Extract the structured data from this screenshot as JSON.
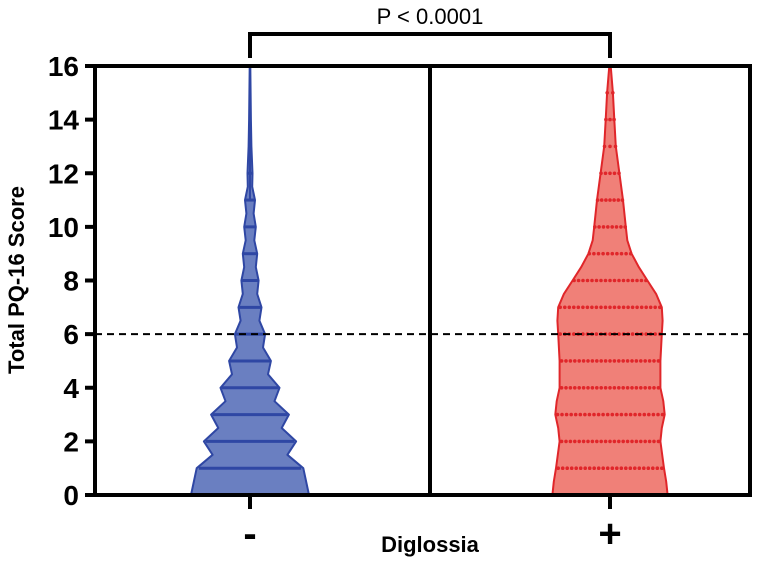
{
  "chart_data": {
    "type": "violin",
    "title": "",
    "ylabel": "Total PQ-16 Score",
    "xlabel": "Diglossia",
    "categories": [
      "-",
      "+"
    ],
    "ylim": [
      0,
      16
    ],
    "yticks": [
      0,
      2,
      4,
      6,
      8,
      10,
      12,
      14,
      16
    ],
    "reference_line": {
      "y": 6,
      "style": "dashed",
      "color": "#000000"
    },
    "annotation": {
      "text": "P < 0.0001",
      "between": [
        "-",
        "+"
      ]
    },
    "grid": false,
    "legend": "none",
    "series": [
      {
        "category": "-",
        "color_fill": "#6a7fc1",
        "color_line": "#2f47a4",
        "density": [
          {
            "y": 0,
            "w": 0.82
          },
          {
            "y": 1,
            "w": 0.74
          },
          {
            "y": 1.5,
            "w": 0.52
          },
          {
            "y": 2,
            "w": 0.64
          },
          {
            "y": 2.5,
            "w": 0.44
          },
          {
            "y": 3,
            "w": 0.54
          },
          {
            "y": 3.5,
            "w": 0.34
          },
          {
            "y": 4,
            "w": 0.41
          },
          {
            "y": 4.5,
            "w": 0.25
          },
          {
            "y": 5,
            "w": 0.29
          },
          {
            "y": 5.5,
            "w": 0.18
          },
          {
            "y": 6,
            "w": 0.21
          },
          {
            "y": 6.5,
            "w": 0.13
          },
          {
            "y": 7,
            "w": 0.16
          },
          {
            "y": 7.5,
            "w": 0.1
          },
          {
            "y": 8,
            "w": 0.12
          },
          {
            "y": 8.5,
            "w": 0.08
          },
          {
            "y": 9,
            "w": 0.1
          },
          {
            "y": 9.5,
            "w": 0.06
          },
          {
            "y": 10,
            "w": 0.08
          },
          {
            "y": 10.5,
            "w": 0.05
          },
          {
            "y": 11,
            "w": 0.07
          },
          {
            "y": 11.5,
            "w": 0.03
          },
          {
            "y": 12,
            "w": 0.035
          },
          {
            "y": 13,
            "w": 0.02
          },
          {
            "y": 14,
            "w": 0.012
          },
          {
            "y": 15,
            "w": 0.008
          },
          {
            "y": 16,
            "w": 0.004
          }
        ],
        "score_levels": [
          0,
          1,
          2,
          3,
          4,
          5,
          6,
          7,
          8,
          9,
          10,
          11,
          12,
          13,
          14,
          15,
          16
        ]
      },
      {
        "category": "+",
        "color_fill": "#f08078",
        "color_line": "#e0262a",
        "density": [
          {
            "y": 0,
            "w": 0.8
          },
          {
            "y": 0.5,
            "w": 0.78
          },
          {
            "y": 1,
            "w": 0.75
          },
          {
            "y": 2,
            "w": 0.7
          },
          {
            "y": 2.5,
            "w": 0.72
          },
          {
            "y": 3,
            "w": 0.76
          },
          {
            "y": 3.5,
            "w": 0.74
          },
          {
            "y": 4,
            "w": 0.7
          },
          {
            "y": 5,
            "w": 0.7
          },
          {
            "y": 6,
            "w": 0.72
          },
          {
            "y": 6.5,
            "w": 0.73
          },
          {
            "y": 7,
            "w": 0.72
          },
          {
            "y": 7.5,
            "w": 0.64
          },
          {
            "y": 8,
            "w": 0.52
          },
          {
            "y": 8.5,
            "w": 0.4
          },
          {
            "y": 9,
            "w": 0.3
          },
          {
            "y": 9.5,
            "w": 0.24
          },
          {
            "y": 10,
            "w": 0.22
          },
          {
            "y": 11,
            "w": 0.18
          },
          {
            "y": 12,
            "w": 0.13
          },
          {
            "y": 13,
            "w": 0.08
          },
          {
            "y": 14,
            "w": 0.06
          },
          {
            "y": 15,
            "w": 0.04
          },
          {
            "y": 16,
            "w": 0.01
          }
        ],
        "score_levels": [
          0,
          1,
          2,
          3,
          4,
          5,
          6,
          7,
          8,
          9,
          10,
          11,
          12,
          13,
          14,
          15,
          16
        ]
      }
    ]
  }
}
